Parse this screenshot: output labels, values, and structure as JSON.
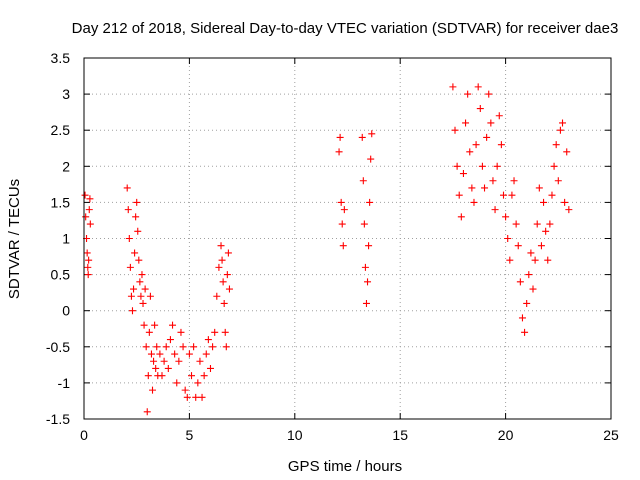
{
  "chart_data": {
    "type": "scatter",
    "title": "Day 212 of 2018, Sidereal Day-to-day VTEC variation (SDTVAR) for receiver dae3",
    "xlabel": "GPS time / hours",
    "ylabel": "SDTVAR / TECUs",
    "xlim": [
      0,
      25
    ],
    "ylim": [
      -1.5,
      3.5
    ],
    "xticks": [
      0,
      5,
      10,
      15,
      20,
      25
    ],
    "yticks": [
      -1.5,
      -1,
      -0.5,
      0,
      0.5,
      1,
      1.5,
      2,
      2.5,
      3,
      3.5
    ],
    "xtick_labels": [
      "0",
      "5",
      "10",
      "15",
      "20",
      "25"
    ],
    "ytick_labels": [
      "-1.5",
      "-1",
      "-0.5",
      "0",
      "0.5",
      "1",
      "1.5",
      "2",
      "2.5",
      "3",
      "3.5"
    ],
    "grid": true,
    "marker": "+",
    "marker_color": "#ff0000",
    "series": [
      {
        "name": "SDTVAR",
        "points": [
          [
            0.05,
            1.6
          ],
          [
            0.08,
            1.3
          ],
          [
            0.12,
            1.0
          ],
          [
            0.15,
            0.8
          ],
          [
            0.18,
            0.6
          ],
          [
            0.2,
            0.5
          ],
          [
            0.22,
            0.7
          ],
          [
            0.25,
            1.4
          ],
          [
            0.28,
            1.55
          ],
          [
            0.3,
            1.2
          ],
          [
            2.05,
            1.7
          ],
          [
            2.1,
            1.4
          ],
          [
            2.15,
            1.0
          ],
          [
            2.2,
            0.6
          ],
          [
            2.25,
            0.2
          ],
          [
            2.3,
            0.0
          ],
          [
            2.35,
            0.3
          ],
          [
            2.4,
            0.8
          ],
          [
            2.45,
            1.3
          ],
          [
            2.5,
            1.5
          ],
          [
            2.55,
            1.1
          ],
          [
            2.6,
            0.7
          ],
          [
            2.65,
            0.4
          ],
          [
            2.7,
            0.2
          ],
          [
            2.75,
            0.5
          ],
          [
            2.8,
            0.1
          ],
          [
            2.85,
            -0.2
          ],
          [
            2.9,
            0.3
          ],
          [
            2.95,
            -0.5
          ],
          [
            3.0,
            -1.4
          ],
          [
            3.05,
            -0.9
          ],
          [
            3.1,
            -0.3
          ],
          [
            3.15,
            0.2
          ],
          [
            3.2,
            -0.6
          ],
          [
            3.25,
            -1.1
          ],
          [
            3.3,
            -0.7
          ],
          [
            3.35,
            -0.2
          ],
          [
            3.4,
            -0.8
          ],
          [
            3.45,
            -0.5
          ],
          [
            3.5,
            -0.9
          ],
          [
            3.6,
            -0.6
          ],
          [
            3.7,
            -0.9
          ],
          [
            3.8,
            -0.7
          ],
          [
            3.9,
            -0.5
          ],
          [
            4.0,
            -0.8
          ],
          [
            4.1,
            -0.4
          ],
          [
            4.2,
            -0.2
          ],
          [
            4.3,
            -0.6
          ],
          [
            4.4,
            -1.0
          ],
          [
            4.5,
            -0.7
          ],
          [
            4.6,
            -0.3
          ],
          [
            4.7,
            -0.5
          ],
          [
            4.8,
            -1.1
          ],
          [
            4.9,
            -1.2
          ],
          [
            5.0,
            -0.6
          ],
          [
            5.1,
            -0.9
          ],
          [
            5.2,
            -0.5
          ],
          [
            5.3,
            -1.2
          ],
          [
            5.4,
            -1.0
          ],
          [
            5.5,
            -0.7
          ],
          [
            5.6,
            -1.2
          ],
          [
            5.7,
            -0.9
          ],
          [
            5.8,
            -0.6
          ],
          [
            5.9,
            -0.4
          ],
          [
            6.0,
            -0.8
          ],
          [
            6.1,
            -0.5
          ],
          [
            6.2,
            -0.3
          ],
          [
            6.3,
            0.2
          ],
          [
            6.4,
            0.6
          ],
          [
            6.5,
            0.9
          ],
          [
            6.55,
            0.7
          ],
          [
            6.6,
            0.4
          ],
          [
            6.65,
            0.1
          ],
          [
            6.7,
            -0.3
          ],
          [
            6.75,
            -0.5
          ],
          [
            6.8,
            0.5
          ],
          [
            6.85,
            0.8
          ],
          [
            6.9,
            0.3
          ],
          [
            12.1,
            2.2
          ],
          [
            12.15,
            2.4
          ],
          [
            12.2,
            1.5
          ],
          [
            12.25,
            1.2
          ],
          [
            12.3,
            0.9
          ],
          [
            12.35,
            1.4
          ],
          [
            13.2,
            2.4
          ],
          [
            13.25,
            1.8
          ],
          [
            13.3,
            1.2
          ],
          [
            13.35,
            0.6
          ],
          [
            13.4,
            0.1
          ],
          [
            13.45,
            0.4
          ],
          [
            13.5,
            0.9
          ],
          [
            13.55,
            1.5
          ],
          [
            13.6,
            2.1
          ],
          [
            13.65,
            2.45
          ],
          [
            17.5,
            3.1
          ],
          [
            17.6,
            2.5
          ],
          [
            17.7,
            2.0
          ],
          [
            17.8,
            1.6
          ],
          [
            17.9,
            1.3
          ],
          [
            18.0,
            1.9
          ],
          [
            18.1,
            2.6
          ],
          [
            18.2,
            3.0
          ],
          [
            18.3,
            2.2
          ],
          [
            18.4,
            1.7
          ],
          [
            18.5,
            1.5
          ],
          [
            18.6,
            2.3
          ],
          [
            18.7,
            3.1
          ],
          [
            18.8,
            2.8
          ],
          [
            18.9,
            2.0
          ],
          [
            19.0,
            1.7
          ],
          [
            19.1,
            2.4
          ],
          [
            19.2,
            3.0
          ],
          [
            19.3,
            2.6
          ],
          [
            19.4,
            1.8
          ],
          [
            19.5,
            1.4
          ],
          [
            19.6,
            2.0
          ],
          [
            19.7,
            2.7
          ],
          [
            19.8,
            2.3
          ],
          [
            19.9,
            1.6
          ],
          [
            20.0,
            1.3
          ],
          [
            20.1,
            1.0
          ],
          [
            20.2,
            0.7
          ],
          [
            20.3,
            1.6
          ],
          [
            20.4,
            1.8
          ],
          [
            20.5,
            1.2
          ],
          [
            20.6,
            0.9
          ],
          [
            20.7,
            0.4
          ],
          [
            20.8,
            -0.1
          ],
          [
            20.9,
            -0.3
          ],
          [
            21.0,
            0.1
          ],
          [
            21.1,
            0.5
          ],
          [
            21.2,
            0.8
          ],
          [
            21.3,
            0.3
          ],
          [
            21.4,
            0.7
          ],
          [
            21.5,
            1.2
          ],
          [
            21.6,
            1.7
          ],
          [
            21.7,
            0.9
          ],
          [
            21.8,
            1.5
          ],
          [
            21.9,
            1.1
          ],
          [
            22.0,
            0.7
          ],
          [
            22.1,
            1.2
          ],
          [
            22.2,
            1.6
          ],
          [
            22.3,
            2.0
          ],
          [
            22.4,
            2.3
          ],
          [
            22.5,
            1.8
          ],
          [
            22.6,
            2.5
          ],
          [
            22.7,
            2.6
          ],
          [
            22.8,
            1.5
          ],
          [
            22.9,
            2.2
          ],
          [
            23.0,
            1.4
          ]
        ]
      }
    ]
  }
}
